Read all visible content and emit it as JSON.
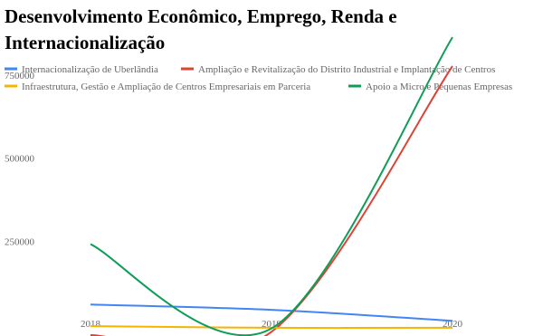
{
  "chart_data": {
    "type": "line",
    "title": "Desenvolvimento Econômico, Emprego, Renda e Internacionalização",
    "categories": [
      "2018",
      "2019",
      "2020"
    ],
    "series": [
      {
        "name": "Internacionalização de Uberlândia",
        "color": "#4285f4",
        "values": [
          92000,
          76000,
          43000
        ]
      },
      {
        "name": "Ampliação e Revitalização do Distrito Industrial e Implantação de Centros",
        "color": "#db4437",
        "values": [
          0,
          10000,
          810000
        ]
      },
      {
        "name": "Infraestrutura, Gestão e Ampliação de Centros Empresariais em Parceria",
        "color": "#f4b400",
        "values": [
          27000,
          22000,
          22000
        ]
      },
      {
        "name": "Apoio a Micro e Pequenas Empresas",
        "color": "#0f9d58",
        "values": [
          274000,
          20000,
          897000
        ]
      }
    ],
    "ylim": [
      0,
      900000
    ],
    "yticks": [
      250000,
      500000,
      750000
    ],
    "grid": false,
    "smooth": true
  }
}
